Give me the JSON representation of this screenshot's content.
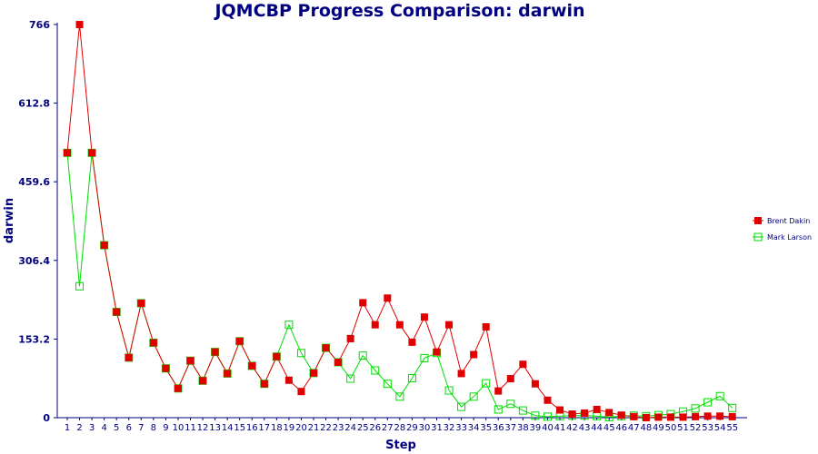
{
  "chart_data": {
    "type": "line",
    "title": "JQMCBP Progress Comparison: darwin",
    "xlabel": "Step",
    "ylabel": "darwin",
    "ylim": [
      0,
      766
    ],
    "yticks": [
      "0",
      "153.2",
      "306.4",
      "459.6",
      "612.8",
      "766"
    ],
    "x": [
      1,
      2,
      3,
      4,
      5,
      6,
      7,
      8,
      9,
      10,
      11,
      12,
      13,
      14,
      15,
      16,
      17,
      18,
      19,
      20,
      21,
      22,
      23,
      24,
      25,
      26,
      27,
      28,
      29,
      30,
      31,
      32,
      33,
      34,
      35,
      36,
      37,
      38,
      39,
      40,
      41,
      42,
      43,
      44,
      45,
      46,
      47,
      48,
      49,
      50,
      51,
      52,
      53,
      54,
      55
    ],
    "grid": false,
    "legend_position": "right",
    "series": [
      {
        "name": "Brent Dakin",
        "color": "#e00000",
        "marker": "filled-square",
        "values": [
          516,
          766,
          516,
          336,
          206,
          117,
          223,
          146,
          96,
          57,
          111,
          72,
          128,
          86,
          149,
          101,
          66,
          119,
          73,
          51,
          87,
          136,
          108,
          154,
          224,
          181,
          233,
          181,
          147,
          196,
          128,
          181,
          86,
          123,
          177,
          52,
          76,
          104,
          66,
          34,
          15,
          7,
          9,
          16,
          10,
          5,
          2,
          0,
          1,
          1,
          1,
          2,
          3,
          3,
          2
        ]
      },
      {
        "name": "Mark Larson",
        "color": "#00dd00",
        "marker": "open-square",
        "values": [
          516,
          256,
          516,
          336,
          206,
          117,
          223,
          146,
          96,
          57,
          111,
          72,
          128,
          86,
          149,
          101,
          66,
          119,
          181,
          126,
          87,
          136,
          108,
          76,
          121,
          92,
          66,
          41,
          77,
          116,
          126,
          53,
          21,
          41,
          67,
          16,
          27,
          14,
          4,
          2,
          3,
          4,
          4,
          3,
          1,
          3,
          4,
          3,
          5,
          7,
          12,
          18,
          30,
          42,
          19
        ]
      }
    ]
  }
}
